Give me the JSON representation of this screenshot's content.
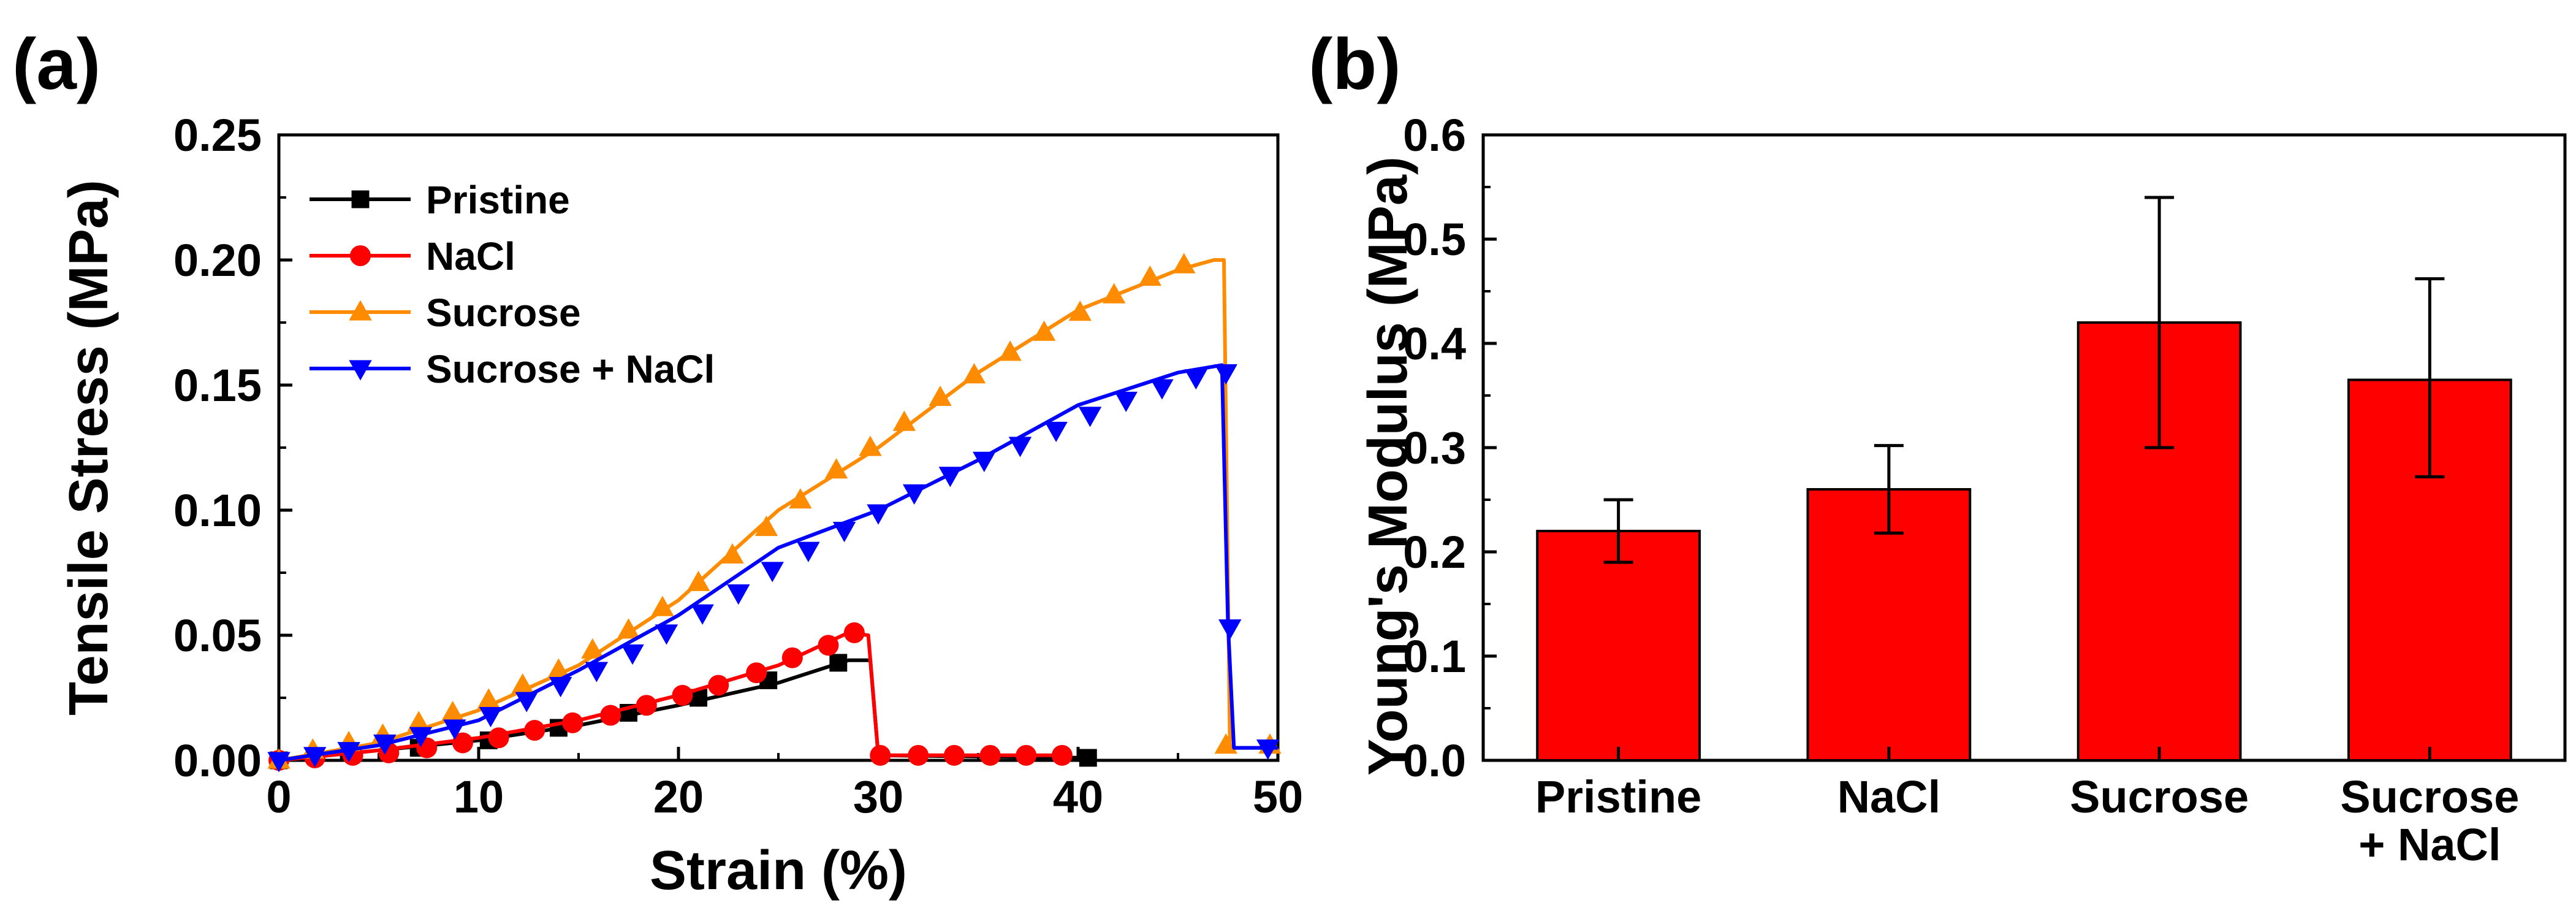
{
  "chart_data": [
    {
      "panel": "(a)",
      "type": "line",
      "xlabel": "Strain (%)",
      "ylabel": "Tensile Stress (MPa)",
      "xlim": [
        0,
        50
      ],
      "ylim": [
        0,
        0.25
      ],
      "xticks": [
        0,
        10,
        20,
        30,
        40,
        50
      ],
      "xtick_labels": [
        "0",
        "10",
        "20",
        "30",
        "40",
        "50"
      ],
      "yticks": [
        0,
        0.05,
        0.1,
        0.15,
        0.2,
        0.25
      ],
      "ytick_labels": [
        "0.00",
        "0.05",
        "0.10",
        "0.15",
        "0.20",
        "0.25"
      ],
      "grid": false,
      "legend_position": "top-left",
      "series": [
        {
          "name": "Pristine",
          "color": "#000000",
          "marker": "square",
          "line": [
            [
              0,
              0
            ],
            [
              5,
              0.004
            ],
            [
              10,
              0.008
            ],
            [
              15,
              0.014
            ],
            [
              20,
              0.022
            ],
            [
              25,
              0.031
            ],
            [
              28.5,
              0.04
            ],
            [
              29.6,
              0.04
            ],
            [
              30,
              0.002
            ],
            [
              40.5,
              0.001
            ]
          ],
          "markers": [
            [
              0,
              0
            ],
            [
              3.5,
              0.003
            ],
            [
              7,
              0.005
            ],
            [
              10.5,
              0.008
            ],
            [
              14,
              0.013
            ],
            [
              17.5,
              0.019
            ],
            [
              21,
              0.025
            ],
            [
              24.5,
              0.032
            ],
            [
              28,
              0.039
            ],
            [
              40.5,
              0.001
            ]
          ]
        },
        {
          "name": "NaCl",
          "color": "#ff0000",
          "marker": "circle",
          "line": [
            [
              0,
              0
            ],
            [
              5,
              0.004
            ],
            [
              10,
              0.009
            ],
            [
              15,
              0.016
            ],
            [
              20,
              0.026
            ],
            [
              25,
              0.038
            ],
            [
              28.5,
              0.051
            ],
            [
              29.5,
              0.05
            ],
            [
              30,
              0.002
            ],
            [
              39,
              0.002
            ]
          ],
          "markers": [
            [
              0,
              0
            ],
            [
              1.8,
              0.001
            ],
            [
              3.7,
              0.002
            ],
            [
              5.5,
              0.003
            ],
            [
              7.4,
              0.005
            ],
            [
              9.2,
              0.007
            ],
            [
              11,
              0.009
            ],
            [
              12.8,
              0.012
            ],
            [
              14.7,
              0.015
            ],
            [
              16.6,
              0.018
            ],
            [
              18.4,
              0.022
            ],
            [
              20.2,
              0.026
            ],
            [
              22,
              0.03
            ],
            [
              23.9,
              0.035
            ],
            [
              25.7,
              0.041
            ],
            [
              27.5,
              0.046
            ],
            [
              28.8,
              0.051
            ],
            [
              30.1,
              0.002
            ],
            [
              32,
              0.002
            ],
            [
              33.8,
              0.002
            ],
            [
              35.6,
              0.002
            ],
            [
              37.4,
              0.002
            ],
            [
              39.2,
              0.002
            ]
          ]
        },
        {
          "name": "Sucrose",
          "color": "#ff8c00",
          "marker": "triangle-up",
          "line": [
            [
              0,
              0
            ],
            [
              5,
              0.007
            ],
            [
              10,
              0.02
            ],
            [
              15,
              0.038
            ],
            [
              20,
              0.064
            ],
            [
              25,
              0.1
            ],
            [
              30,
              0.125
            ],
            [
              35,
              0.155
            ],
            [
              40,
              0.18
            ],
            [
              45,
              0.196
            ],
            [
              46.8,
              0.2
            ],
            [
              47.3,
              0.2
            ],
            [
              47.6,
              0.005
            ],
            [
              49.8,
              0.005
            ]
          ],
          "markers": [
            [
              0,
              0
            ],
            [
              1.7,
              0.004
            ],
            [
              3.5,
              0.007
            ],
            [
              5.2,
              0.01
            ],
            [
              7,
              0.015
            ],
            [
              8.7,
              0.019
            ],
            [
              10.5,
              0.024
            ],
            [
              12.2,
              0.03
            ],
            [
              14,
              0.036
            ],
            [
              15.7,
              0.044
            ],
            [
              17.5,
              0.052
            ],
            [
              19.2,
              0.061
            ],
            [
              21,
              0.071
            ],
            [
              22.7,
              0.082
            ],
            [
              24.4,
              0.093
            ],
            [
              26.1,
              0.104
            ],
            [
              27.9,
              0.116
            ],
            [
              29.6,
              0.125
            ],
            [
              31.3,
              0.135
            ],
            [
              33.1,
              0.145
            ],
            [
              34.8,
              0.154
            ],
            [
              36.6,
              0.163
            ],
            [
              38.3,
              0.171
            ],
            [
              40.1,
              0.179
            ],
            [
              41.8,
              0.186
            ],
            [
              43.6,
              0.193
            ],
            [
              45.3,
              0.198
            ],
            [
              47.4,
              0.006
            ],
            [
              49.6,
              0.006
            ]
          ]
        },
        {
          "name": "Sucrose + NaCl",
          "color": "#0000ff",
          "marker": "triangle-down",
          "line": [
            [
              0,
              0
            ],
            [
              5,
              0.006
            ],
            [
              10,
              0.016
            ],
            [
              15,
              0.036
            ],
            [
              20,
              0.058
            ],
            [
              25,
              0.085
            ],
            [
              30,
              0.1
            ],
            [
              35,
              0.12
            ],
            [
              40,
              0.142
            ],
            [
              45,
              0.155
            ],
            [
              47.2,
              0.158
            ],
            [
              47.5,
              0.055
            ],
            [
              47.8,
              0.005
            ],
            [
              50,
              0.005
            ]
          ],
          "markers": [
            [
              0,
              0
            ],
            [
              1.8,
              0.002
            ],
            [
              3.5,
              0.004
            ],
            [
              5.3,
              0.007
            ],
            [
              7.1,
              0.01
            ],
            [
              8.8,
              0.013
            ],
            [
              10.6,
              0.018
            ],
            [
              12.4,
              0.024
            ],
            [
              14.1,
              0.03
            ],
            [
              15.9,
              0.036
            ],
            [
              17.7,
              0.043
            ],
            [
              19.4,
              0.051
            ],
            [
              21.2,
              0.059
            ],
            [
              23,
              0.067
            ],
            [
              24.7,
              0.076
            ],
            [
              26.5,
              0.084
            ],
            [
              28.3,
              0.092
            ],
            [
              30,
              0.099
            ],
            [
              31.8,
              0.107
            ],
            [
              33.6,
              0.114
            ],
            [
              35.3,
              0.12
            ],
            [
              37.1,
              0.126
            ],
            [
              38.9,
              0.132
            ],
            [
              40.6,
              0.138
            ],
            [
              42.4,
              0.144
            ],
            [
              44.2,
              0.149
            ],
            [
              45.9,
              0.153
            ],
            [
              47.4,
              0.155
            ],
            [
              47.6,
              0.053
            ],
            [
              49.5,
              0.005
            ]
          ]
        }
      ]
    },
    {
      "panel": "(b)",
      "type": "bar",
      "categories": [
        "Pristine",
        "NaCl",
        "Sucrose",
        "Sucrose\n+ NaCl"
      ],
      "category_lines": [
        [
          "Pristine"
        ],
        [
          "NaCl"
        ],
        [
          "Sucrose"
        ],
        [
          "Sucrose",
          "+ NaCl"
        ]
      ],
      "values": [
        0.22,
        0.26,
        0.42,
        0.365
      ],
      "errors": [
        [
          0.19,
          0.25
        ],
        [
          0.218,
          0.302
        ],
        [
          0.3,
          0.54
        ],
        [
          0.272,
          0.462
        ]
      ],
      "bar_color": "#ff0000",
      "xlabel": "",
      "ylabel": "Young's Modulus (MPa)",
      "ylim": [
        0,
        0.6
      ],
      "yticks": [
        0,
        0.1,
        0.2,
        0.3,
        0.4,
        0.5,
        0.6
      ],
      "ytick_labels": [
        "0.0",
        "0.1",
        "0.2",
        "0.3",
        "0.4",
        "0.5",
        "0.6"
      ],
      "grid": false
    }
  ]
}
